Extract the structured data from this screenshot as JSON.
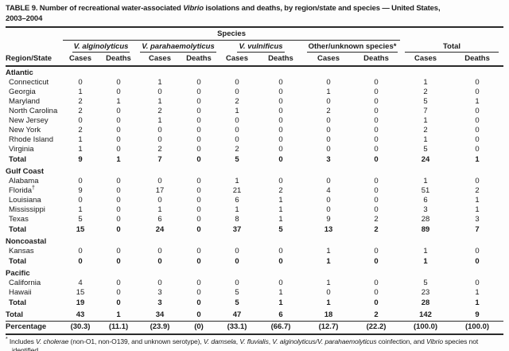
{
  "title": {
    "line1_prefix": "TABLE 9. Number of recreational water-associated ",
    "line1_italic": "Vibrio",
    "line1_suffix": " isolations and deaths, by region/state and species — United States,",
    "line2": "2003–2004"
  },
  "header": {
    "species_label": "Species",
    "region_state_label": "Region/State",
    "groups": [
      {
        "name": "V. alginolyticus"
      },
      {
        "name": "V. parahaemolyticus"
      },
      {
        "name": "V. vulnificus"
      },
      {
        "name": "Other/unknown species*"
      },
      {
        "name": "Total"
      }
    ],
    "cases_label": "Cases",
    "deaths_label": "Deaths"
  },
  "rows": [
    {
      "type": "region",
      "label": "Atlantic"
    },
    {
      "type": "state",
      "label": "Connecticut",
      "values": [
        "0",
        "0",
        "1",
        "0",
        "0",
        "0",
        "0",
        "0",
        "1",
        "0"
      ]
    },
    {
      "type": "state",
      "label": "Georgia",
      "values": [
        "1",
        "0",
        "0",
        "0",
        "0",
        "0",
        "1",
        "0",
        "2",
        "0"
      ]
    },
    {
      "type": "state",
      "label": "Maryland",
      "values": [
        "2",
        "1",
        "1",
        "0",
        "2",
        "0",
        "0",
        "0",
        "5",
        "1"
      ]
    },
    {
      "type": "state",
      "label": "North Carolina",
      "values": [
        "2",
        "0",
        "2",
        "0",
        "1",
        "0",
        "2",
        "0",
        "7",
        "0"
      ]
    },
    {
      "type": "state",
      "label": "New Jersey",
      "values": [
        "0",
        "0",
        "1",
        "0",
        "0",
        "0",
        "0",
        "0",
        "1",
        "0"
      ]
    },
    {
      "type": "state",
      "label": "New York",
      "values": [
        "2",
        "0",
        "0",
        "0",
        "0",
        "0",
        "0",
        "0",
        "2",
        "0"
      ]
    },
    {
      "type": "state",
      "label": "Rhode Island",
      "values": [
        "1",
        "0",
        "0",
        "0",
        "0",
        "0",
        "0",
        "0",
        "1",
        "0"
      ]
    },
    {
      "type": "state",
      "label": "Virginia",
      "values": [
        "1",
        "0",
        "2",
        "0",
        "2",
        "0",
        "0",
        "0",
        "5",
        "0"
      ]
    },
    {
      "type": "total",
      "label": "Total",
      "values": [
        "9",
        "1",
        "7",
        "0",
        "5",
        "0",
        "3",
        "0",
        "24",
        "1"
      ]
    },
    {
      "type": "region",
      "label": "Gulf Coast"
    },
    {
      "type": "state",
      "label": "Alabama",
      "values": [
        "0",
        "0",
        "0",
        "0",
        "1",
        "0",
        "0",
        "0",
        "1",
        "0"
      ]
    },
    {
      "type": "state",
      "label": "Florida†",
      "values": [
        "9",
        "0",
        "17",
        "0",
        "21",
        "2",
        "4",
        "0",
        "51",
        "2"
      ]
    },
    {
      "type": "state",
      "label": "Louisiana",
      "values": [
        "0",
        "0",
        "0",
        "0",
        "6",
        "1",
        "0",
        "0",
        "6",
        "1"
      ]
    },
    {
      "type": "state",
      "label": "Mississippi",
      "values": [
        "1",
        "0",
        "1",
        "0",
        "1",
        "1",
        "0",
        "0",
        "3",
        "1"
      ]
    },
    {
      "type": "state",
      "label": "Texas",
      "values": [
        "5",
        "0",
        "6",
        "0",
        "8",
        "1",
        "9",
        "2",
        "28",
        "3"
      ]
    },
    {
      "type": "total",
      "label": "Total",
      "values": [
        "15",
        "0",
        "24",
        "0",
        "37",
        "5",
        "13",
        "2",
        "89",
        "7"
      ]
    },
    {
      "type": "region",
      "label": "Noncoastal"
    },
    {
      "type": "state",
      "label": "Kansas",
      "values": [
        "0",
        "0",
        "0",
        "0",
        "0",
        "0",
        "1",
        "0",
        "1",
        "0"
      ]
    },
    {
      "type": "total",
      "label": "Total",
      "values": [
        "0",
        "0",
        "0",
        "0",
        "0",
        "0",
        "1",
        "0",
        "1",
        "0"
      ]
    },
    {
      "type": "region",
      "label": "Pacific"
    },
    {
      "type": "state",
      "label": "California",
      "values": [
        "4",
        "0",
        "0",
        "0",
        "0",
        "0",
        "1",
        "0",
        "5",
        "0"
      ]
    },
    {
      "type": "state",
      "label": "Hawaii",
      "values": [
        "15",
        "0",
        "3",
        "0",
        "5",
        "1",
        "0",
        "0",
        "23",
        "1"
      ]
    },
    {
      "type": "total",
      "label": "Total",
      "values": [
        "19",
        "0",
        "3",
        "0",
        "5",
        "1",
        "1",
        "0",
        "28",
        "1"
      ]
    },
    {
      "type": "grandtotal",
      "label": "Total",
      "values": [
        "43",
        "1",
        "34",
        "0",
        "47",
        "6",
        "18",
        "2",
        "142",
        "9"
      ]
    },
    {
      "type": "percentage",
      "label": "Percentage",
      "values": [
        "(30.3)",
        "(11.1)",
        "(23.9)",
        "(0)",
        "(33.1)",
        "(66.7)",
        "(12.7)",
        "(22.2)",
        "(100.0)",
        "(100.0)"
      ]
    }
  ],
  "footnotes": [
    {
      "segments": [
        {
          "t": "*",
          "sup": true
        },
        {
          "t": " Includes "
        },
        {
          "t": "V. cholerae",
          "i": true
        },
        {
          "t": " (non-O1, non-O139, and unknown serotype), "
        },
        {
          "t": "V. damsela",
          "i": true
        },
        {
          "t": ", "
        },
        {
          "t": "V. fluvialis",
          "i": true
        },
        {
          "t": ", "
        },
        {
          "t": "V. alginolyticus/V. parahaemolyticus",
          "i": true
        },
        {
          "t": " coinfection, and "
        },
        {
          "t": "Vibrio",
          "i": true
        },
        {
          "t": " species not identified."
        }
      ]
    },
    {
      "segments": [
        {
          "t": "†",
          "sup": true
        },
        {
          "t": "Five reports from Florida indicate Atlantic coast exposure."
        }
      ]
    }
  ]
}
